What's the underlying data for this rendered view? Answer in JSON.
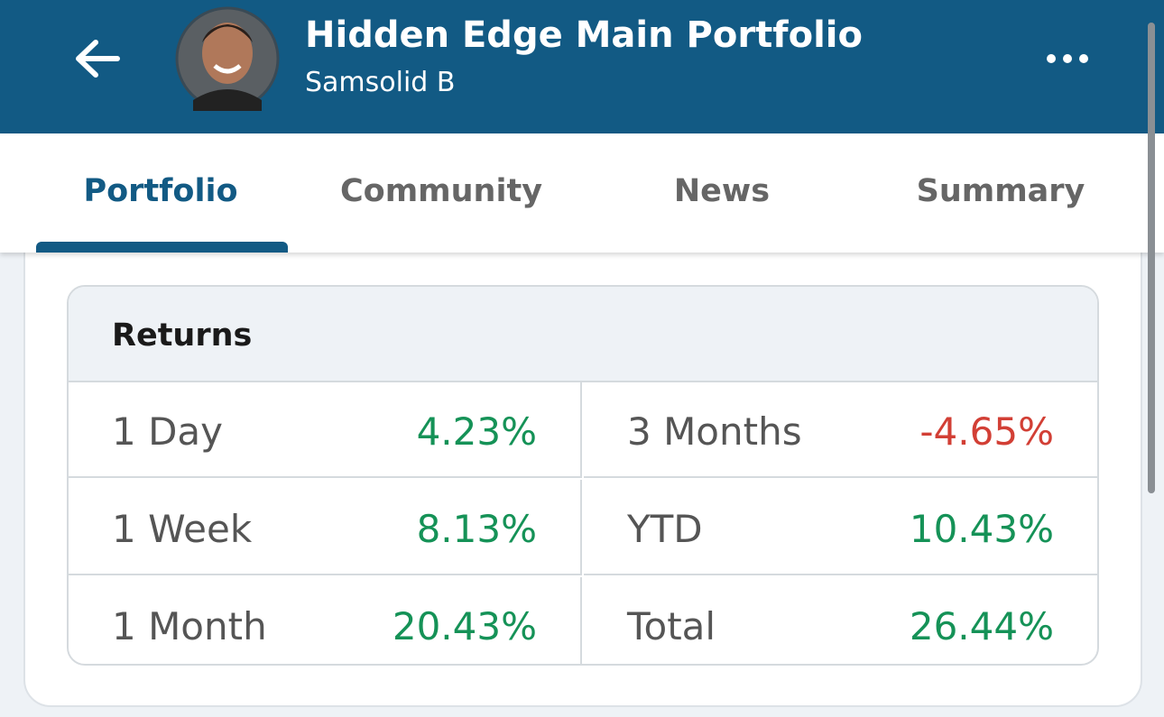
{
  "header": {
    "title": "Hidden Edge Main Portfolio",
    "subtitle": "Samsolid B"
  },
  "tabs": [
    {
      "label": "Portfolio",
      "active": true
    },
    {
      "label": "Community",
      "active": false
    },
    {
      "label": "News",
      "active": false
    },
    {
      "label": "Summary",
      "active": false
    }
  ],
  "returns": {
    "title": "Returns",
    "rows": [
      [
        {
          "label": "1 Day",
          "value": "4.23%",
          "color": "#159257"
        },
        {
          "label": "3 Months",
          "value": "-4.65%",
          "color": "#d23f35"
        }
      ],
      [
        {
          "label": "1 Week",
          "value": "8.13%",
          "color": "#159257"
        },
        {
          "label": "YTD",
          "value": "10.43%",
          "color": "#159257"
        }
      ],
      [
        {
          "label": "1 Month",
          "value": "20.43%",
          "color": "#159257"
        },
        {
          "label": "Total",
          "value": "26.44%",
          "color": "#159257"
        }
      ]
    ]
  }
}
